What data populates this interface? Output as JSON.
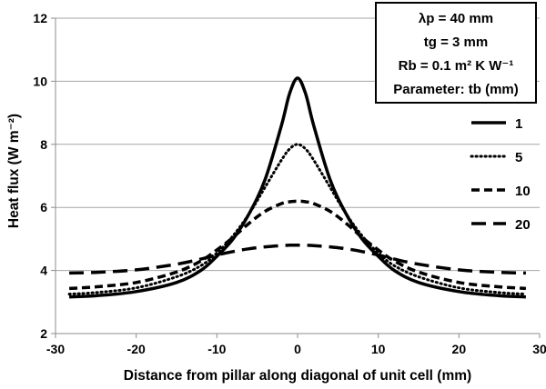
{
  "chart_data": {
    "type": "line",
    "xlabel": "Distance from pillar along diagonal of unit cell (mm)",
    "ylabel": "Heat flux (W m⁻²)",
    "xlim": [
      -30,
      30
    ],
    "ylim": [
      2,
      12
    ],
    "xticks": [
      -30,
      -20,
      -10,
      0,
      10,
      20,
      30
    ],
    "yticks": [
      2,
      4,
      6,
      8,
      10,
      12
    ],
    "grid": "horizontal",
    "legend_position": "right",
    "legend_title": "",
    "series": [
      {
        "name": "1",
        "style": "solid",
        "x": [
          -28.3,
          -25,
          -20,
          -15,
          -12,
          -10,
          -8,
          -6,
          -4,
          -2,
          -1,
          0,
          1,
          2,
          4,
          6,
          8,
          10,
          12,
          15,
          20,
          25,
          28.3
        ],
        "y": [
          3.16,
          3.2,
          3.33,
          3.62,
          4.0,
          4.45,
          5.0,
          5.8,
          6.9,
          8.6,
          9.6,
          10.1,
          9.6,
          8.6,
          6.9,
          5.8,
          5.0,
          4.45,
          4.0,
          3.62,
          3.33,
          3.2,
          3.16
        ]
      },
      {
        "name": "5",
        "style": "dotted",
        "x": [
          -28.3,
          -25,
          -20,
          -15,
          -12,
          -10,
          -8,
          -6,
          -4,
          -2,
          -1,
          0,
          1,
          2,
          4,
          6,
          8,
          10,
          12,
          15,
          20,
          25,
          28.3
        ],
        "y": [
          3.25,
          3.3,
          3.45,
          3.8,
          4.15,
          4.55,
          5.1,
          5.8,
          6.65,
          7.5,
          7.85,
          8.0,
          7.85,
          7.5,
          6.65,
          5.8,
          5.1,
          4.55,
          4.15,
          3.8,
          3.45,
          3.3,
          3.25
        ]
      },
      {
        "name": "10",
        "style": "dashed",
        "x": [
          -28.3,
          -25,
          -20,
          -15,
          -12,
          -10,
          -8,
          -6,
          -4,
          -2,
          -1,
          0,
          1,
          2,
          4,
          6,
          8,
          10,
          12,
          15,
          20,
          25,
          28.3
        ],
        "y": [
          3.43,
          3.48,
          3.62,
          3.95,
          4.3,
          4.65,
          5.05,
          5.5,
          5.88,
          6.12,
          6.18,
          6.2,
          6.18,
          6.12,
          5.88,
          5.5,
          5.05,
          4.65,
          4.3,
          3.95,
          3.62,
          3.48,
          3.43
        ]
      },
      {
        "name": "20",
        "style": "long-dashed",
        "x": [
          -28.3,
          -25,
          -20,
          -15,
          -12,
          -10,
          -8,
          -6,
          -4,
          -2,
          -1,
          0,
          1,
          2,
          4,
          6,
          8,
          10,
          12,
          15,
          20,
          25,
          28.3
        ],
        "y": [
          3.92,
          3.94,
          4.02,
          4.2,
          4.36,
          4.49,
          4.6,
          4.69,
          4.75,
          4.79,
          4.8,
          4.8,
          4.8,
          4.79,
          4.75,
          4.69,
          4.6,
          4.49,
          4.36,
          4.2,
          4.02,
          3.94,
          3.92
        ]
      }
    ]
  },
  "info_box": {
    "line1": "λp = 40 mm",
    "line2": "tg = 3 mm",
    "line3": "Rb = 0.1 m² K W⁻¹",
    "line4": "Parameter: tb (mm)"
  }
}
